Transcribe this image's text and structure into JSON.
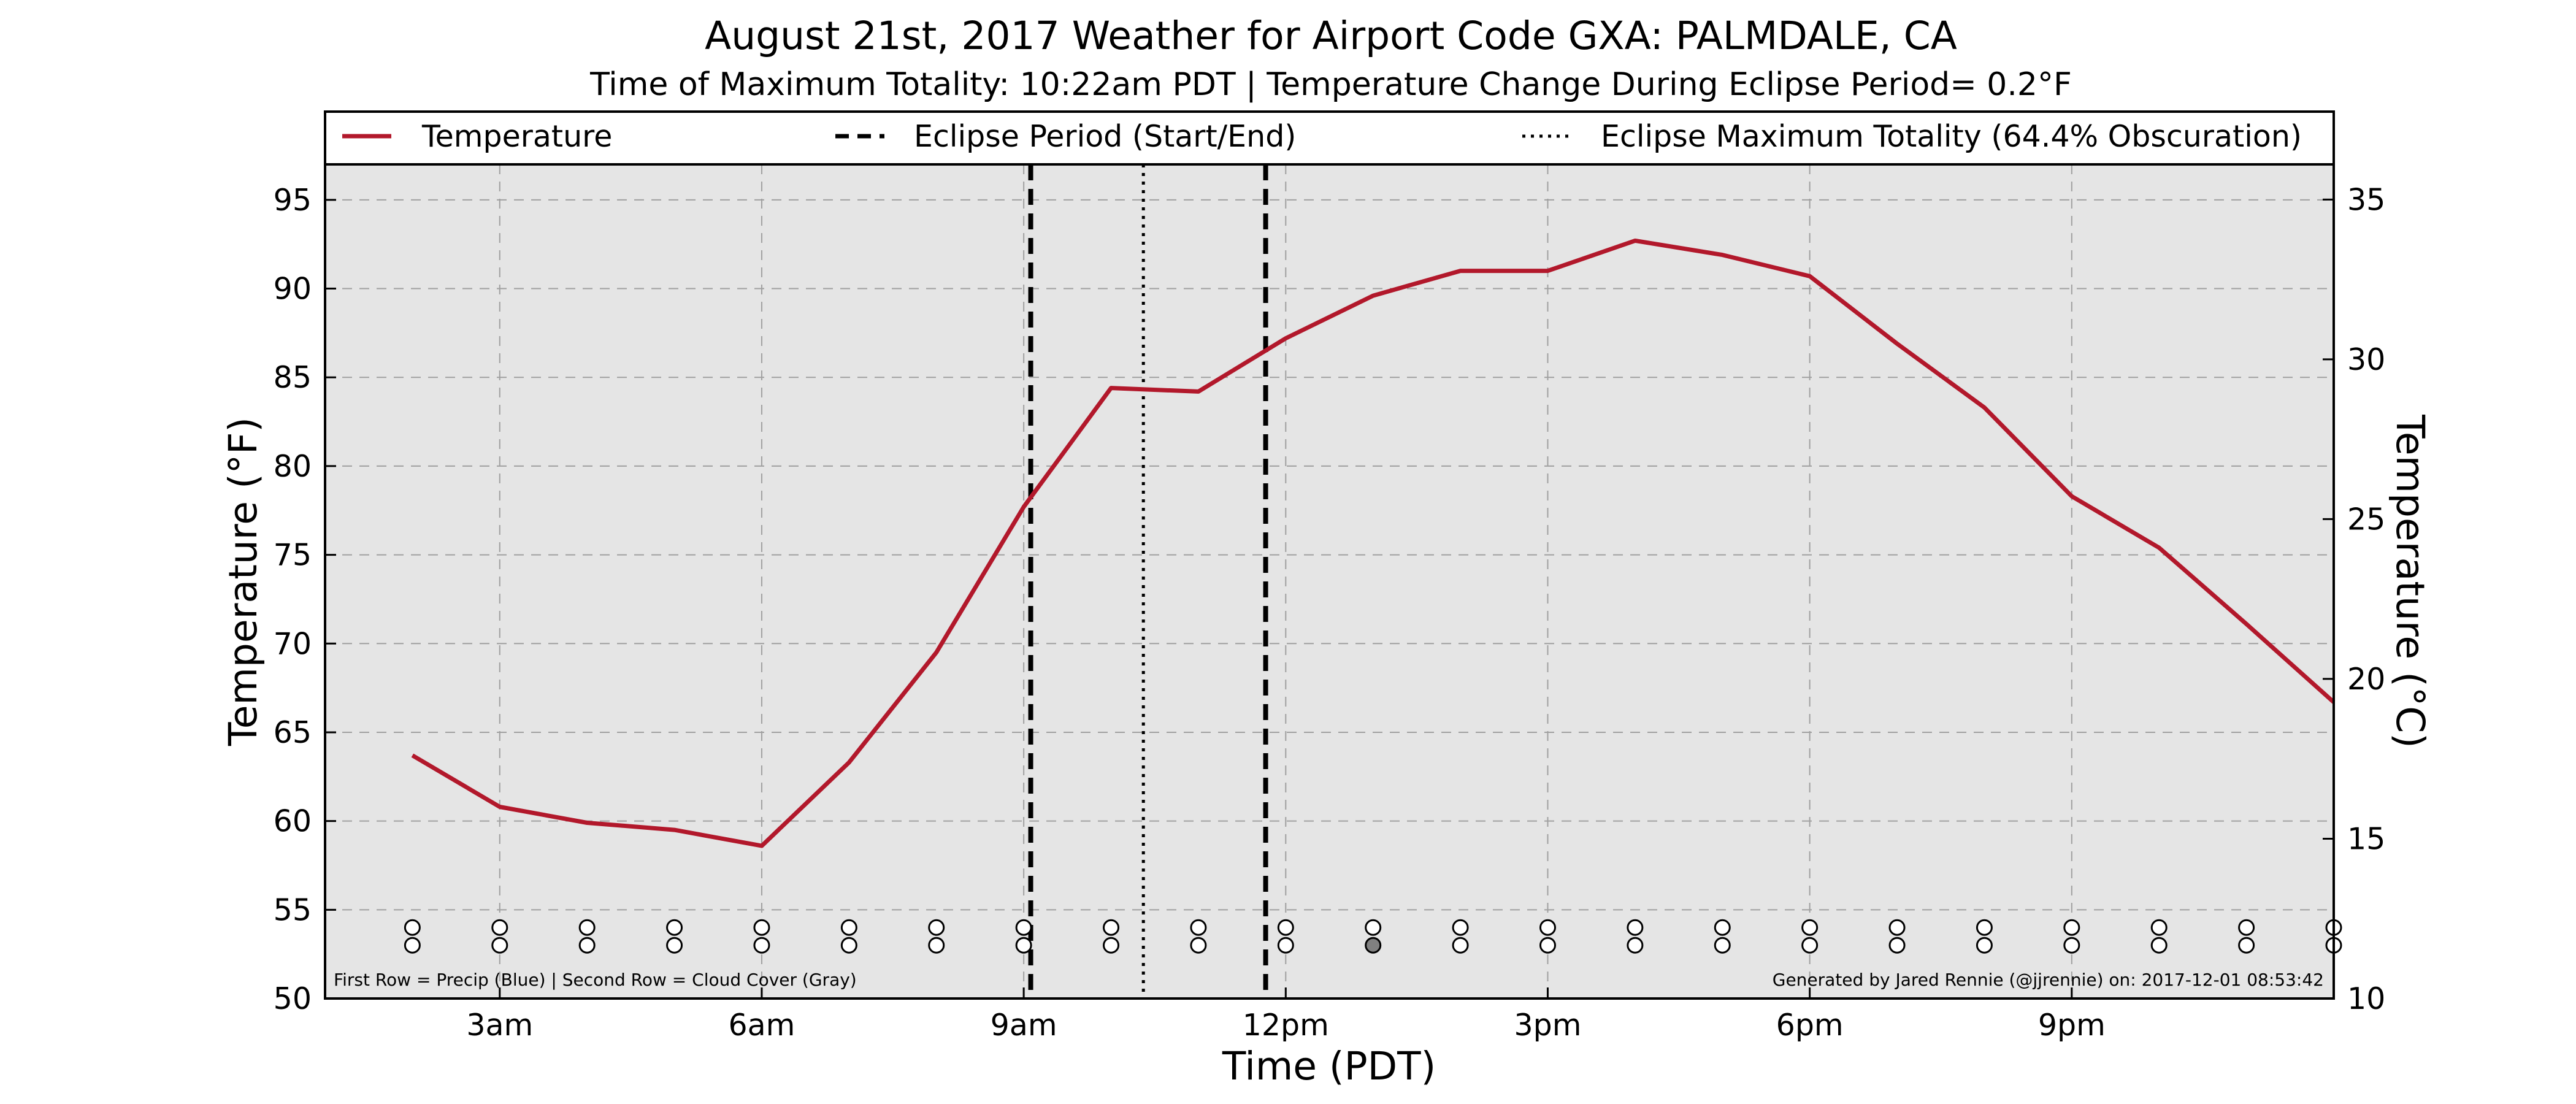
{
  "title": "August 21st, 2017 Weather for Airport Code GXA: PALMDALE, CA",
  "subtitle": "Time of Maximum Totality: 10:22am PDT | Temperature Change During Eclipse Period= 0.2°F",
  "xlabel": "Time (PDT)",
  "ylabel_left": "Temperature (°F)",
  "ylabel_right": "Temperature (°C)",
  "footnote_left": "First Row = Precip (Blue) | Second Row = Cloud Cover (Gray)",
  "footnote_right": "Generated by Jared Rennie (@jjrennie) on: 2017-12-01 08:53:42",
  "legend": {
    "temperature": "Temperature",
    "eclipse_period": "Eclipse Period (Start/End)",
    "eclipse_max": "Eclipse Maximum Totality (64.4% Obscuration)"
  },
  "colors": {
    "temperature": "#b2182b",
    "plot_background": "#e5e5e5",
    "grid": "#a0a0a0",
    "cloud_cover_filled": "#808080"
  },
  "chart_data": {
    "type": "line",
    "x_unit": "hour of day (PDT)",
    "xlim": [
      1,
      24
    ],
    "ylim": [
      50,
      97
    ],
    "ylim_right": [
      10,
      36.1
    ],
    "yticks_left": [
      50,
      55,
      60,
      65,
      70,
      75,
      80,
      85,
      90,
      95
    ],
    "yticks_right": [
      10,
      15,
      20,
      25,
      30,
      35
    ],
    "xticks": [
      {
        "x": 3,
        "label": "3am"
      },
      {
        "x": 6,
        "label": "6am"
      },
      {
        "x": 9,
        "label": "9am"
      },
      {
        "x": 12,
        "label": "12pm"
      },
      {
        "x": 15,
        "label": "3pm"
      },
      {
        "x": 18,
        "label": "6pm"
      },
      {
        "x": 21,
        "label": "9pm"
      }
    ],
    "grid": true,
    "legend_position": "top",
    "series": [
      {
        "name": "Temperature",
        "x": [
          2,
          3,
          4,
          5,
          6,
          7,
          8,
          9,
          10,
          11,
          12,
          13,
          14,
          15,
          16,
          17,
          18,
          19,
          20,
          21,
          22,
          23,
          24
        ],
        "y": [
          63.7,
          60.8,
          59.9,
          59.5,
          58.6,
          63.3,
          69.5,
          77.7,
          84.4,
          84.2,
          87.2,
          89.6,
          91.0,
          91.0,
          92.7,
          91.9,
          90.7,
          86.9,
          83.3,
          78.3,
          75.4,
          71.1,
          66.7
        ]
      }
    ],
    "eclipse_start": 9.08,
    "eclipse_end": 11.77,
    "eclipse_max": 10.37,
    "precip_row": {
      "x": [
        2,
        3,
        4,
        5,
        6,
        7,
        8,
        9,
        10,
        11,
        12,
        13,
        14,
        15,
        16,
        17,
        18,
        19,
        20,
        21,
        22,
        23,
        24
      ],
      "filled": [
        false,
        false,
        false,
        false,
        false,
        false,
        false,
        false,
        false,
        false,
        false,
        false,
        false,
        false,
        false,
        false,
        false,
        false,
        false,
        false,
        false,
        false,
        false
      ],
      "y": 54
    },
    "cloud_row": {
      "x": [
        2,
        3,
        4,
        5,
        6,
        7,
        8,
        9,
        10,
        11,
        12,
        13,
        14,
        15,
        16,
        17,
        18,
        19,
        20,
        21,
        22,
        23,
        24
      ],
      "filled": [
        false,
        false,
        false,
        false,
        false,
        false,
        false,
        false,
        false,
        false,
        false,
        true,
        false,
        false,
        false,
        false,
        false,
        false,
        false,
        false,
        false,
        false,
        false
      ],
      "y": 53
    }
  }
}
